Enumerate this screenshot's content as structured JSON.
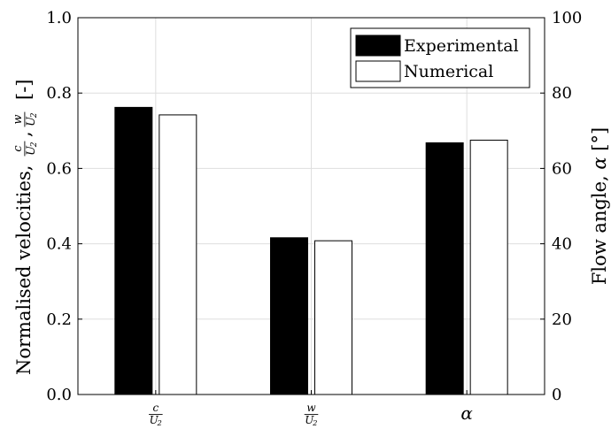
{
  "chart_data": {
    "type": "bar",
    "categories": [
      {
        "num": "c",
        "den": "U",
        "den_sub": "2"
      },
      {
        "num": "w",
        "den": "U",
        "den_sub": "2"
      },
      {
        "text": "α"
      }
    ],
    "series": [
      {
        "name": "Experimental",
        "color": "#000000",
        "values": [
          0.762,
          0.416,
          0.668
        ]
      },
      {
        "name": "Numerical",
        "color": "#ffffff",
        "values": [
          0.742,
          0.408,
          0.675
        ]
      }
    ],
    "ylim": [
      0,
      1.0
    ],
    "y_ticks": [
      "0.0",
      "0.2",
      "0.4",
      "0.6",
      "0.8",
      "1.0"
    ],
    "y_tick_values": [
      0,
      0.2,
      0.4,
      0.6,
      0.8,
      1.0
    ],
    "y2lim": [
      0,
      100
    ],
    "y2_ticks": [
      "0",
      "20",
      "40",
      "60",
      "80",
      "100"
    ],
    "y2_tick_values": [
      0,
      20,
      40,
      60,
      80,
      100
    ],
    "ylabel": {
      "text": "Normalised velocities,",
      "f1": {
        "num": "c",
        "den": "U",
        "den_sub": "2"
      },
      "sep": ",",
      "f2": {
        "num": "w",
        "den": "U",
        "den_sub": "2"
      },
      "unit": "[-]"
    },
    "y2label": {
      "text": "Flow angle,",
      "symbol": "α",
      "unit": "[°]"
    },
    "grid": true,
    "legend_position": "top-right"
  }
}
